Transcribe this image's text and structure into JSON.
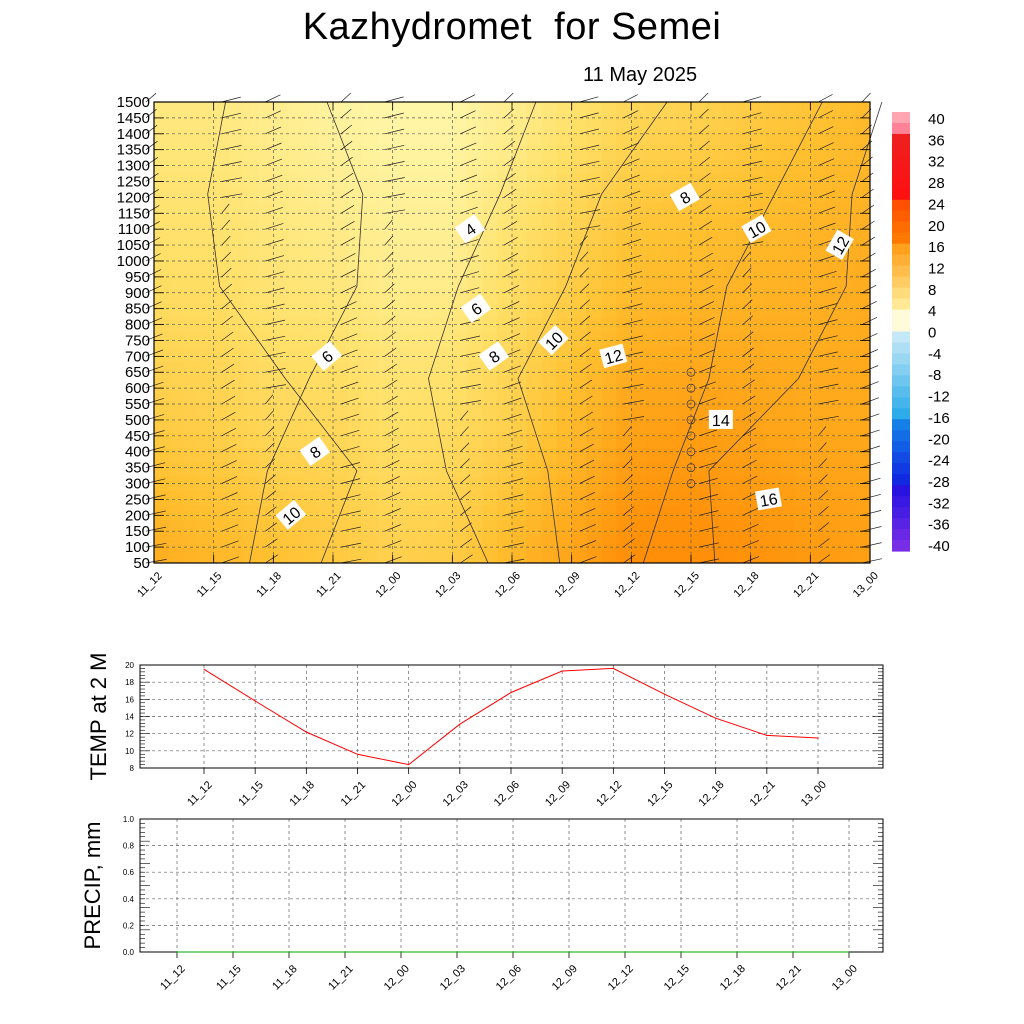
{
  "header": {
    "title": "Kazhydromet  for Semei",
    "date": "11 May 2025"
  },
  "chart_data": [
    {
      "type": "heatmap",
      "title": "Kazhydromet  for Semei",
      "subtitle": "11 May 2025",
      "x_categories": [
        "11_12",
        "11_15",
        "11_18",
        "11_21",
        "12_00",
        "12_03",
        "12_06",
        "12_09",
        "12_12",
        "12_15",
        "12_18",
        "12_21",
        "13_00"
      ],
      "y_ticks": [
        50,
        100,
        150,
        200,
        250,
        300,
        350,
        400,
        450,
        500,
        550,
        600,
        650,
        700,
        750,
        800,
        850,
        900,
        950,
        1000,
        1050,
        1100,
        1150,
        1200,
        1250,
        1300,
        1350,
        1400,
        1450,
        1500
      ],
      "ylim": [
        50,
        1500
      ],
      "temperature_field": {
        "heights": [
          50,
          500,
          1000,
          1500
        ],
        "values": [
          [
            12,
            8.5,
            6,
            4.5
          ],
          [
            11,
            8,
            6,
            4.5
          ],
          [
            10,
            7,
            5,
            3.5
          ],
          [
            9,
            7,
            4.5,
            2.5
          ],
          [
            8,
            6,
            3.5,
            2
          ],
          [
            8.5,
            6.5,
            3.5,
            2
          ],
          [
            11,
            8,
            6,
            3.5
          ],
          [
            13,
            10.5,
            8,
            5.5
          ],
          [
            15.5,
            13,
            10,
            7
          ],
          [
            15.5,
            13.5,
            10.5,
            7.5
          ],
          [
            15,
            13,
            11,
            8.5
          ],
          [
            14,
            12.5,
            11.5,
            9.5
          ],
          [
            13.5,
            12.5,
            12,
            10.5
          ]
        ]
      },
      "contour_labels": [
        "4",
        "6",
        "6",
        "8",
        "8",
        "8",
        "10",
        "10",
        "10",
        "12",
        "12",
        "14",
        "16"
      ],
      "colorbar": {
        "ticks": [
          "40",
          "36",
          "32",
          "28",
          "24",
          "20",
          "16",
          "12",
          "8",
          "4",
          "0",
          "-4",
          "-8",
          "-12",
          "-16",
          "-20",
          "-24",
          "-28",
          "-32",
          "-36",
          "-40"
        ]
      },
      "wind_barbs": true,
      "grid": true
    },
    {
      "type": "line",
      "ylabel": "TEMP at 2 M",
      "x": [
        "11_12",
        "11_15",
        "11_18",
        "11_21",
        "12_00",
        "12_03",
        "12_06",
        "12_09",
        "12_12",
        "12_15",
        "12_18",
        "12_21",
        "13_00"
      ],
      "series": [
        {
          "values": [
            19.5,
            15.8,
            12.2,
            9.6,
            8.4,
            13.1,
            16.8,
            19.3,
            19.6,
            16.6,
            13.8,
            11.8,
            11.5
          ],
          "color": "#ff0000"
        }
      ],
      "ylim": [
        8,
        20
      ],
      "y_ticks": [
        "8",
        "10",
        "12",
        "14",
        "16",
        "18",
        "20"
      ],
      "grid": true
    },
    {
      "type": "line",
      "ylabel": "PRECIP, mm",
      "x": [
        "11_12",
        "11_15",
        "11_18",
        "11_21",
        "12_00",
        "12_03",
        "12_06",
        "12_09",
        "12_12",
        "12_15",
        "12_18",
        "12_21",
        "13_00"
      ],
      "series": [
        {
          "values": [
            0,
            0,
            0,
            0,
            0,
            0,
            0,
            0,
            0,
            0,
            0,
            0,
            0
          ],
          "color": "#00aa00"
        }
      ],
      "ylim": [
        0,
        1
      ],
      "y_ticks": [
        "0.0",
        "0.2",
        "0.4",
        "0.6",
        "0.8",
        "1.0"
      ],
      "grid": true
    }
  ]
}
